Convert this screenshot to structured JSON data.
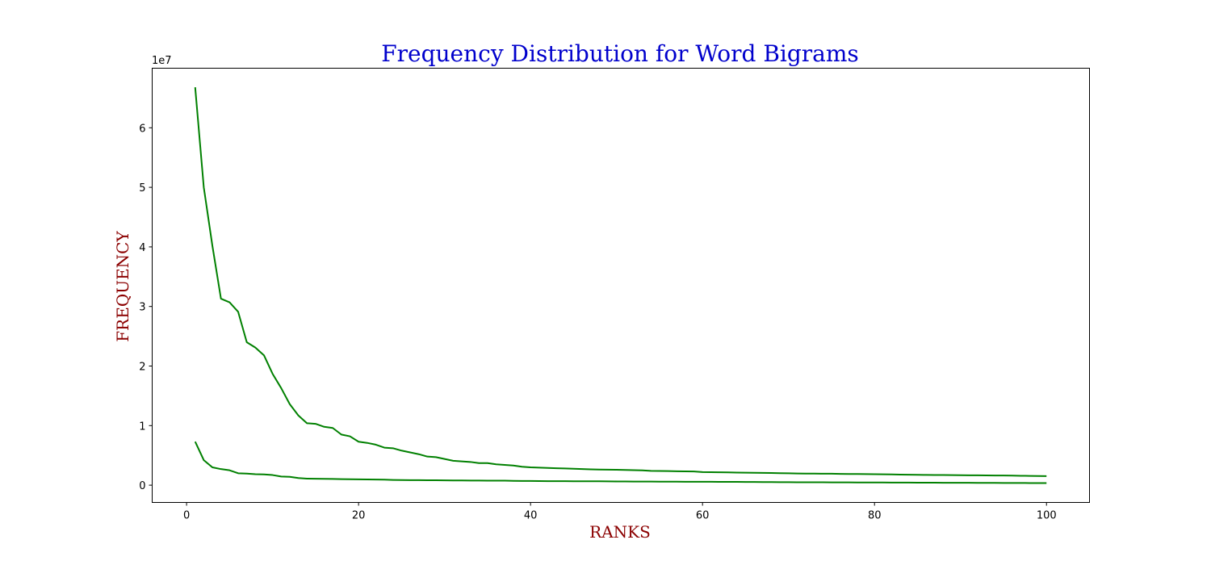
{
  "chart_data": {
    "type": "line",
    "title": "Frequency Distribution for Word Bigrams",
    "xlabel": "RANKS",
    "ylabel": "FREQUENCY",
    "y_offset_label": "1e7",
    "xlim": [
      -4,
      105
    ],
    "ylim": [
      -2900000,
      70000000
    ],
    "x_ticks": [
      0,
      20,
      40,
      60,
      80,
      100
    ],
    "x_tick_labels": [
      "0",
      "20",
      "40",
      "60",
      "80",
      "100"
    ],
    "y_ticks": [
      0,
      10000000,
      20000000,
      30000000,
      40000000,
      50000000,
      60000000
    ],
    "y_tick_labels": [
      "0",
      "1",
      "2",
      "3",
      "4",
      "5",
      "6"
    ],
    "grid": false,
    "line_color": "#008000",
    "series": [
      {
        "x": [
          1,
          2,
          3,
          4,
          5,
          6,
          7,
          8,
          9,
          10,
          11,
          12,
          13,
          14,
          15,
          16,
          17,
          18,
          19,
          20,
          21,
          22,
          23,
          24,
          25,
          26,
          27,
          28,
          29,
          30,
          31,
          32,
          33,
          34,
          35,
          36,
          37,
          38,
          39,
          40,
          41,
          42,
          43,
          44,
          45,
          46,
          47,
          48,
          49,
          50,
          51,
          52,
          53,
          54,
          55,
          56,
          57,
          58,
          59,
          60,
          61,
          62,
          63,
          64,
          65,
          66,
          67,
          68,
          69,
          70,
          71,
          72,
          73,
          74,
          75,
          76,
          77,
          78,
          79,
          80,
          81,
          82,
          83,
          84,
          85,
          86,
          87,
          88,
          89,
          90,
          91,
          92,
          93,
          94,
          95,
          96,
          97,
          98,
          99,
          100
        ],
        "values": [
          66800000,
          50000000,
          40200000,
          31300000,
          30700000,
          29100000,
          24000000,
          23100000,
          21800000,
          18700000,
          16300000,
          13600000,
          11700000,
          10400000,
          10300000,
          9800000,
          9600000,
          8500000,
          8200000,
          7300000,
          7100000,
          6800000,
          6300000,
          6200000,
          5800000,
          5500000,
          5200000,
          4800000,
          4700000,
          4400000,
          4100000,
          4000000,
          3900000,
          3700000,
          3700000,
          3500000,
          3400000,
          3300000,
          3100000,
          3000000,
          2950000,
          2900000,
          2850000,
          2800000,
          2750000,
          2700000,
          2650000,
          2620000,
          2600000,
          2580000,
          2550000,
          2520000,
          2480000,
          2400000,
          2380000,
          2360000,
          2340000,
          2320000,
          2300000,
          2200000,
          2180000,
          2160000,
          2140000,
          2120000,
          2100000,
          2080000,
          2060000,
          2040000,
          2020000,
          2000000,
          1960000,
          1950000,
          1940000,
          1930000,
          1920000,
          1900000,
          1880000,
          1870000,
          1860000,
          1850000,
          1820000,
          1800000,
          1780000,
          1760000,
          1740000,
          1720000,
          1710000,
          1700000,
          1690000,
          1680000,
          1660000,
          1650000,
          1640000,
          1630000,
          1620000,
          1600000,
          1580000,
          1560000,
          1540000,
          1520000
        ]
      },
      {
        "x": [
          1,
          2,
          3,
          4,
          5,
          6,
          7,
          8,
          9,
          10,
          11,
          12,
          13,
          14,
          15,
          16,
          17,
          18,
          19,
          20,
          21,
          22,
          23,
          24,
          25,
          26,
          27,
          28,
          29,
          30,
          31,
          32,
          33,
          34,
          35,
          36,
          37,
          38,
          39,
          40,
          41,
          42,
          43,
          44,
          45,
          46,
          47,
          48,
          49,
          50,
          51,
          52,
          53,
          54,
          55,
          56,
          57,
          58,
          59,
          60,
          61,
          62,
          63,
          64,
          65,
          66,
          67,
          68,
          69,
          70,
          71,
          72,
          73,
          74,
          75,
          76,
          77,
          78,
          79,
          80,
          81,
          82,
          83,
          84,
          85,
          86,
          87,
          88,
          89,
          90,
          91,
          92,
          93,
          94,
          95,
          96,
          97,
          98,
          99,
          100
        ],
        "values": [
          7300000,
          4200000,
          3000000,
          2700000,
          2500000,
          2000000,
          1950000,
          1850000,
          1800000,
          1700000,
          1450000,
          1400000,
          1200000,
          1100000,
          1080000,
          1060000,
          1040000,
          1020000,
          1000000,
          980000,
          960000,
          940000,
          920000,
          880000,
          860000,
          850000,
          840000,
          830000,
          820000,
          810000,
          800000,
          790000,
          780000,
          770000,
          760000,
          755000,
          750000,
          720000,
          710000,
          700000,
          690000,
          680000,
          675000,
          670000,
          665000,
          660000,
          655000,
          650000,
          640000,
          630000,
          620000,
          610000,
          605000,
          600000,
          595000,
          590000,
          585000,
          580000,
          575000,
          570000,
          565000,
          560000,
          555000,
          550000,
          545000,
          540000,
          530000,
          520000,
          510000,
          500000,
          495000,
          490000,
          485000,
          480000,
          475000,
          470000,
          465000,
          460000,
          455000,
          450000,
          445000,
          440000,
          435000,
          430000,
          425000,
          420000,
          415000,
          410000,
          405000,
          400000,
          395000,
          390000,
          385000,
          380000,
          375000,
          370000,
          365000,
          360000,
          355000,
          350000
        ]
      }
    ]
  }
}
